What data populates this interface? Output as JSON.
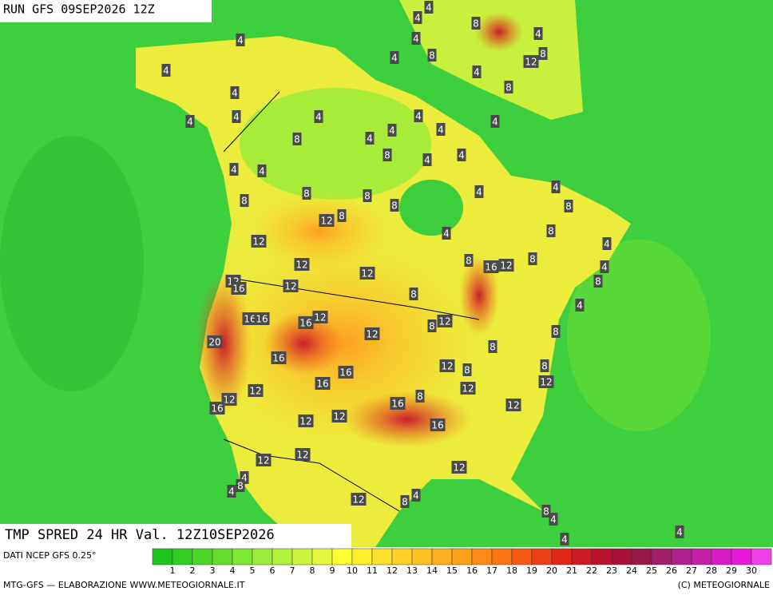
{
  "header": {
    "run": "RUN GFS 09SEP2026 12Z"
  },
  "map_labels": [
    4,
    4,
    8,
    4,
    4,
    4,
    8,
    4,
    8,
    12,
    4,
    4,
    8,
    4,
    4,
    4,
    4,
    4,
    4,
    4,
    4,
    8,
    4,
    8,
    4,
    4,
    4,
    4,
    4,
    4,
    8,
    8,
    8,
    8,
    8,
    12,
    8,
    8,
    4,
    12,
    4,
    8,
    16,
    12,
    8,
    12,
    12,
    4,
    12,
    16,
    12,
    8,
    8,
    4,
    16,
    16,
    16,
    12,
    8,
    12,
    12,
    8,
    20,
    8,
    16,
    16,
    12,
    8,
    8,
    12,
    16,
    12,
    12,
    8,
    16,
    12,
    16,
    12,
    12,
    12,
    16,
    12,
    12,
    12,
    4,
    8,
    4,
    4,
    8,
    12,
    8,
    4,
    4,
    4
  ],
  "title": "TMP SPRED 24 HR Val. 12Z10SEP2026",
  "legend": {
    "source": "DATI NCEP GFS 0.25°",
    "labels": [
      1,
      2,
      3,
      4,
      5,
      6,
      7,
      8,
      9,
      10,
      11,
      12,
      13,
      14,
      15,
      16,
      17,
      18,
      19,
      20,
      21,
      22,
      23,
      24,
      25,
      26,
      27,
      28,
      29,
      30
    ],
    "colors": [
      "#1fc41f",
      "#33cc22",
      "#4dd62a",
      "#66de30",
      "#80e636",
      "#99ec3a",
      "#b3f03c",
      "#ccf43c",
      "#e6f83c",
      "#ffff33",
      "#fff02e",
      "#ffe02a",
      "#ffd026",
      "#ffc022",
      "#ffb01e",
      "#ffa01a",
      "#ff8a18",
      "#ff7216",
      "#f75a14",
      "#ee4014",
      "#e02818",
      "#cc1a22",
      "#b8142e",
      "#a8123a",
      "#981848",
      "#a01e6a",
      "#b0208a",
      "#c41ea8",
      "#d81cc4",
      "#e81adc",
      "#f040e8"
    ]
  },
  "footer": {
    "credit": "MTG-GFS — ELABORAZIONE WWW.METEOGIORNALE.IT",
    "copyright": "(C) METEOGIORNALE"
  }
}
